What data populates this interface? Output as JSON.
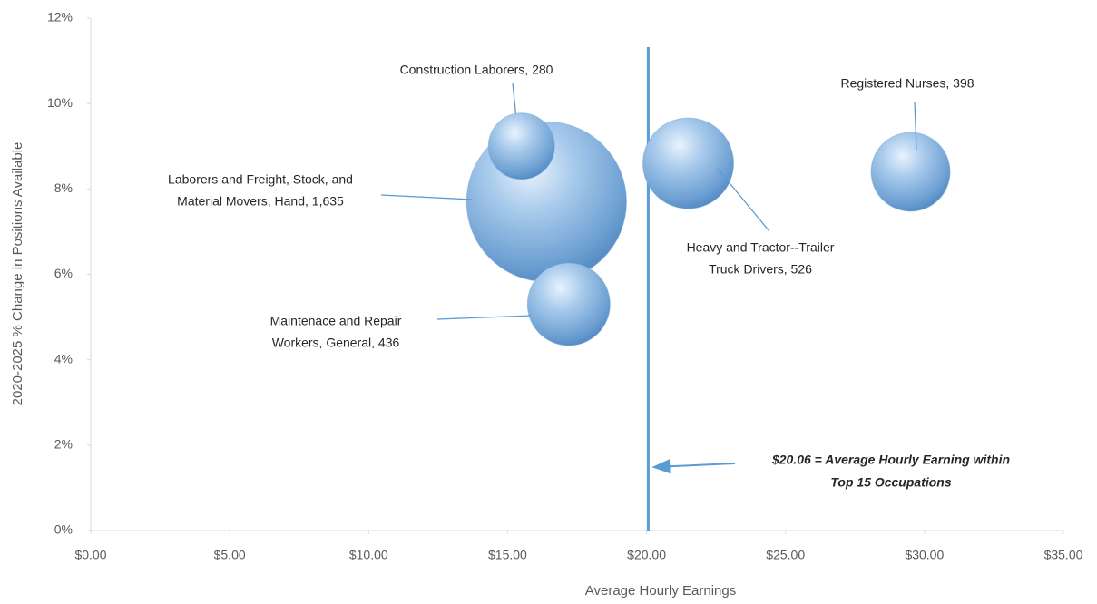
{
  "chart_data": {
    "type": "bubble",
    "x_label": "Average Hourly Earnings",
    "y_label": "2020-2025 % Change in Positions Available",
    "xlim": [
      0,
      35
    ],
    "xticks": [
      {
        "value": 0,
        "label": "$0.00"
      },
      {
        "value": 5,
        "label": "$5.00"
      },
      {
        "value": 10,
        "label": "$10.00"
      },
      {
        "value": 15,
        "label": "$15.00"
      },
      {
        "value": 20,
        "label": "$20.00"
      },
      {
        "value": 25,
        "label": "$25.00"
      },
      {
        "value": 30,
        "label": "$30.00"
      },
      {
        "value": 35,
        "label": "$35.00"
      }
    ],
    "ylim": [
      0,
      12
    ],
    "yticks": [
      {
        "value": 0,
        "label": "0%"
      },
      {
        "value": 2,
        "label": "2%"
      },
      {
        "value": 4,
        "label": "4%"
      },
      {
        "value": 6,
        "label": "6%"
      },
      {
        "value": 8,
        "label": "8%"
      },
      {
        "value": 10,
        "label": "10%"
      },
      {
        "value": 12,
        "label": "12%"
      }
    ],
    "series": [
      {
        "color": "#6fa8dc",
        "x": [
          15.5,
          16.4,
          17.2,
          21.5,
          29.5
        ],
        "values": [
          9.0,
          7.7,
          5.3,
          8.6,
          8.4
        ],
        "sizes": [
          280,
          1635,
          436,
          526,
          398
        ],
        "labels": [
          [
            "Construction Laborers, 280"
          ],
          [
            "Laborers and Freight, Stock, and",
            "Material Movers, Hand, 1,635"
          ],
          [
            "Maintenace and Repair",
            "Workers, General, 436"
          ],
          [
            "Heavy and Tractor--Trailer",
            "Truck Drivers, 526"
          ],
          [
            "Registered Nurses, 398"
          ]
        ]
      }
    ],
    "reference_line": {
      "value": 20.06,
      "color": "#5b9bd5",
      "label": [
        "$20.06 = Average Hourly Earning within",
        "Top 15 Occupations"
      ]
    }
  }
}
